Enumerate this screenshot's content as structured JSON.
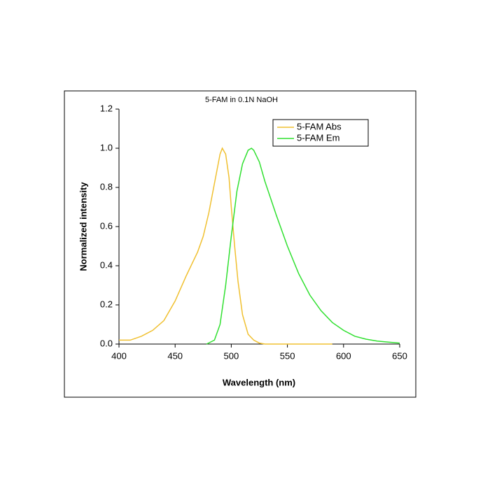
{
  "chart_data": {
    "type": "line",
    "title": "5-FAM in 0.1N NaOH",
    "x_label": "Wavelength (nm)",
    "y_label": "Normalized intensity",
    "xlim": [
      400,
      650
    ],
    "ylim": [
      0,
      1.2
    ],
    "xticks": [
      400,
      450,
      500,
      550,
      600,
      650
    ],
    "yticks": [
      {
        "value": 0,
        "label": "0.0"
      },
      0.2,
      0.4,
      0.6,
      0.8,
      {
        "value": 1,
        "label": "1.0"
      },
      1.2
    ],
    "grid": false,
    "legend": "upper right",
    "series": [
      {
        "name": "5-FAM Abs",
        "color": "#f0c030",
        "x": [
          400,
          410,
          420,
          430,
          440,
          450,
          460,
          470,
          475,
          480,
          485,
          490,
          492,
          495,
          498,
          500,
          503,
          506,
          510,
          515,
          520,
          525,
          530,
          560,
          590
        ],
        "values": [
          0.02,
          0.02,
          0.04,
          0.07,
          0.12,
          0.22,
          0.35,
          0.47,
          0.55,
          0.67,
          0.82,
          0.97,
          1.0,
          0.97,
          0.85,
          0.7,
          0.5,
          0.32,
          0.15,
          0.05,
          0.02,
          0.005,
          0,
          0,
          0
        ]
      },
      {
        "name": "5-FAM Em",
        "color": "#30e030",
        "x": [
          478,
          485,
          490,
          495,
          500,
          505,
          510,
          515,
          518,
          520,
          525,
          530,
          540,
          550,
          560,
          570,
          580,
          590,
          600,
          610,
          620,
          630,
          640,
          650
        ],
        "values": [
          0,
          0.02,
          0.1,
          0.3,
          0.55,
          0.78,
          0.92,
          0.99,
          1.0,
          0.99,
          0.93,
          0.83,
          0.66,
          0.5,
          0.36,
          0.25,
          0.17,
          0.11,
          0.07,
          0.04,
          0.025,
          0.015,
          0.01,
          0.005
        ]
      }
    ]
  }
}
